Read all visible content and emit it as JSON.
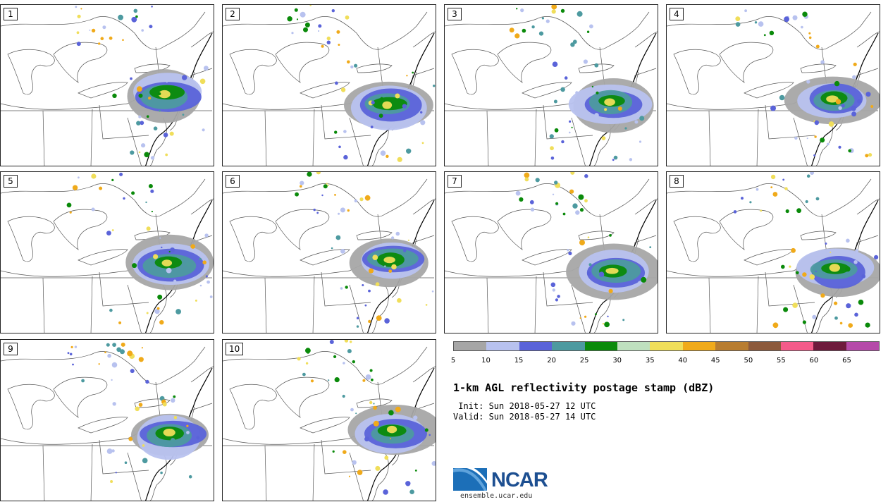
{
  "panels": [
    {
      "label": "1"
    },
    {
      "label": "2"
    },
    {
      "label": "3"
    },
    {
      "label": "4"
    },
    {
      "label": "5"
    },
    {
      "label": "6"
    },
    {
      "label": "7"
    },
    {
      "label": "8"
    },
    {
      "label": "9"
    },
    {
      "label": "10"
    }
  ],
  "colorbar": {
    "colors": [
      "#a6a6a6",
      "#b8c2ef",
      "#5a63d9",
      "#4d9aa0",
      "#0a8a0a",
      "#bfe0bf",
      "#f0de5a",
      "#f0aa1a",
      "#b87d30",
      "#8c5a3c",
      "#f45b8a",
      "#6e1a3c",
      "#b54aa9"
    ],
    "ticks": [
      "5",
      "10",
      "15",
      "20",
      "25",
      "30",
      "35",
      "40",
      "45",
      "50",
      "55",
      "60",
      "65"
    ]
  },
  "title": "1-km AGL reflectivity postage stamp (dBZ)",
  "init": " Init: Sun 2018-05-27 12 UTC",
  "valid": "Valid: Sun 2018-05-27 14 UTC",
  "logo": {
    "name": "NCAR",
    "url": "ensemble.ucar.edu"
  }
}
